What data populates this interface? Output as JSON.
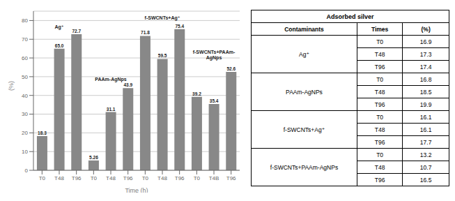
{
  "chart_data": [
    {
      "type": "bar",
      "categories": [
        "T0",
        "T48",
        "T96",
        "T0",
        "T48",
        "T96",
        "T0",
        "T48",
        "T96",
        "T0",
        "T4B",
        "T96"
      ],
      "values": [
        18.3,
        65.0,
        72.7,
        5.26,
        31.1,
        43.9,
        71.8,
        59.5,
        75.4,
        39.2,
        35.4,
        52.6
      ],
      "value_labels": [
        "18.3",
        "65.0",
        "72.7",
        "5.26",
        "31.1",
        "43.9",
        "71.8",
        "59.5",
        "75.4",
        "39.2",
        "35.4",
        "52.6"
      ],
      "color": "#888888",
      "xlabel": "Time (h)",
      "ylabel": "(%)",
      "ylim": [
        0,
        85
      ],
      "yticks": [
        0,
        10,
        20,
        30,
        40,
        50,
        60,
        70,
        80
      ],
      "grid": true,
      "data_labels": true,
      "annotations": [
        {
          "text": "Ag⁺",
          "x": 1,
          "y": 74.5
        },
        {
          "text": "PAAm-AgNps",
          "x": 4,
          "y": 46.5
        },
        {
          "text": "f-SWCNTs+Ag⁺",
          "x": 7,
          "y": 79.5
        },
        {
          "text": "f-SWCNTs+PAAm-\nAgNps",
          "x": 10,
          "y": 58.0
        }
      ]
    },
    {
      "type": "table",
      "title": "Adsorbed silver",
      "columns": [
        "Contaminants",
        "Times",
        "(%)"
      ],
      "series": [
        {
          "name": "Ag⁺",
          "categories": [
            "T0",
            "T48",
            "T96"
          ],
          "values": [
            16.9,
            17.3,
            17.4
          ]
        },
        {
          "name": "PAAm-AgNPs",
          "categories": [
            "T0",
            "T48",
            "T96"
          ],
          "values": [
            16.8,
            18.5,
            19.9
          ]
        },
        {
          "name": "f-SWCNTs+Ag⁺",
          "categories": [
            "T0",
            "T48",
            "T96"
          ],
          "values": [
            16.1,
            16.1,
            17.7
          ]
        },
        {
          "name": "f-SWCNTs+PAAm-AgNPs",
          "categories": [
            "T0",
            "T48",
            "T96"
          ],
          "values": [
            13.2,
            10.7,
            16.5
          ]
        }
      ]
    }
  ]
}
